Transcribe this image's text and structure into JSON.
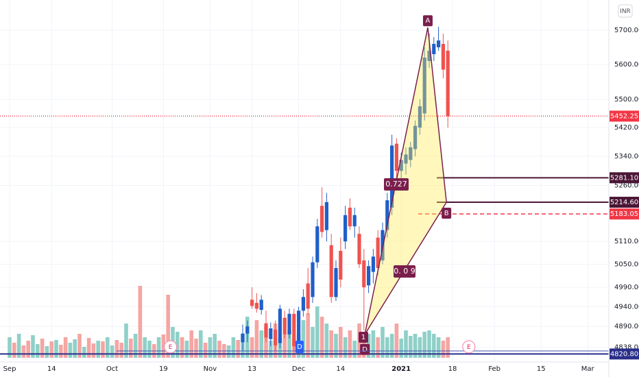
{
  "chart_data": {
    "type": "candlestick",
    "currency": "INR",
    "categories": [
      "Sep",
      null,
      null,
      null,
      null,
      null,
      null,
      null,
      null,
      "14",
      null,
      null,
      null,
      null,
      null,
      null,
      null,
      null,
      null,
      null,
      null,
      null,
      "Oct",
      null,
      null,
      null,
      null,
      null,
      null,
      null,
      null,
      null,
      null,
      "19",
      null,
      null,
      null,
      null,
      null,
      null,
      null,
      null,
      null,
      "Nov",
      null,
      null,
      null,
      null,
      null,
      null,
      null,
      null,
      "13",
      null,
      null,
      null,
      null,
      null,
      null,
      null,
      null,
      null,
      "Dec",
      null,
      null,
      null,
      null,
      null,
      null,
      null,
      null,
      "14",
      null,
      null,
      null,
      null,
      null,
      null,
      null,
      null,
      null,
      null,
      null,
      null,
      "2021",
      null,
      null,
      null,
      null,
      null,
      null,
      null,
      null,
      null,
      null,
      "18",
      null,
      null,
      null,
      null,
      null,
      null,
      null,
      null,
      "Feb",
      null,
      null,
      null,
      null,
      null,
      null,
      null,
      null,
      null,
      "15",
      null,
      null,
      null,
      null,
      null,
      null,
      null,
      null,
      null,
      "Mar",
      null,
      null,
      null
    ],
    "open": [
      null,
      null,
      null,
      null,
      null,
      null,
      null,
      null,
      null,
      null,
      null,
      null,
      null,
      null,
      null,
      null,
      null,
      null,
      null,
      null,
      null,
      null,
      null,
      null,
      null,
      null,
      null,
      null,
      null,
      null,
      null,
      null,
      null,
      null,
      null,
      null,
      null,
      null,
      null,
      null,
      null,
      null,
      null,
      null,
      null,
      null,
      null,
      null,
      null,
      null,
      4850,
      4872,
      4958,
      4950,
      4932,
      4898,
      4858,
      4882,
      4848,
      4912,
      4870,
      4922,
      4840,
      4930,
      5000,
      4965,
      5055,
      5205,
      5140,
      5100,
      4965,
      5085,
      5110,
      5200,
      5150,
      5130,
      5060,
      4995,
      5030,
      5120,
      5060,
      5140,
      5200,
      5375,
      5300,
      5320,
      5330,
      5360,
      5420,
      5460,
      5610,
      5630,
      5650,
      5660,
      5640,
      null,
      null,
      null,
      null,
      null,
      null,
      null,
      null,
      null,
      null,
      null,
      null,
      null,
      null,
      null,
      null,
      null,
      null,
      null,
      null,
      null,
      null,
      null,
      null,
      null,
      null,
      null,
      null,
      null,
      null,
      null,
      null,
      null
    ],
    "high": [
      null,
      null,
      null,
      null,
      null,
      null,
      null,
      null,
      null,
      null,
      null,
      null,
      null,
      null,
      null,
      null,
      null,
      null,
      null,
      null,
      null,
      null,
      null,
      null,
      null,
      null,
      null,
      null,
      null,
      null,
      null,
      null,
      null,
      null,
      null,
      null,
      null,
      null,
      null,
      null,
      null,
      null,
      null,
      null,
      null,
      null,
      null,
      null,
      null,
      null,
      4895,
      4905,
      4990,
      4975,
      4970,
      4930,
      4900,
      4905,
      4945,
      4930,
      4935,
      4935,
      4940,
      4985,
      5040,
      5070,
      5170,
      5255,
      5240,
      5130,
      5060,
      5120,
      5205,
      5225,
      5200,
      5150,
      5090,
      5060,
      5090,
      5140,
      5160,
      5240,
      5400,
      5390,
      5350,
      5365,
      5380,
      5440,
      5500,
      5650,
      5690,
      5680,
      5710,
      5690,
      5670,
      null,
      null,
      null,
      null,
      null,
      null,
      null,
      null,
      null,
      null,
      null,
      null,
      null,
      null,
      null,
      null,
      null,
      null,
      null,
      null,
      null,
      null,
      null,
      null,
      null,
      null,
      null,
      null,
      null,
      null,
      null,
      null,
      null
    ],
    "low": [
      null,
      null,
      null,
      null,
      null,
      null,
      null,
      null,
      null,
      null,
      null,
      null,
      null,
      null,
      null,
      null,
      null,
      null,
      null,
      null,
      null,
      null,
      null,
      null,
      null,
      null,
      null,
      null,
      null,
      null,
      null,
      null,
      null,
      null,
      null,
      null,
      null,
      null,
      null,
      null,
      null,
      null,
      null,
      null,
      null,
      null,
      null,
      null,
      null,
      null,
      4830,
      4850,
      4935,
      4925,
      4920,
      4850,
      4840,
      4830,
      4835,
      4860,
      4860,
      4830,
      4825,
      4915,
      4920,
      4950,
      5040,
      5120,
      5110,
      4950,
      4955,
      4990,
      5090,
      5140,
      5120,
      5040,
      4880,
      4975,
      5000,
      5020,
      5050,
      5120,
      5180,
      5280,
      5270,
      5290,
      5310,
      5340,
      5400,
      5440,
      5590,
      5610,
      5640,
      5560,
      5420,
      null,
      null,
      null,
      null,
      null,
      null,
      null,
      null,
      null,
      null,
      null,
      null,
      null,
      null,
      null,
      null,
      null,
      null,
      null,
      null,
      null,
      null,
      null,
      null,
      null,
      null,
      null,
      null,
      null,
      null,
      null,
      null,
      null
    ],
    "close": [
      null,
      null,
      null,
      null,
      null,
      null,
      null,
      null,
      null,
      null,
      null,
      null,
      null,
      null,
      null,
      null,
      null,
      null,
      null,
      null,
      null,
      null,
      null,
      null,
      null,
      null,
      null,
      null,
      null,
      null,
      null,
      null,
      null,
      null,
      null,
      null,
      null,
      null,
      null,
      null,
      null,
      null,
      null,
      null,
      null,
      null,
      null,
      null,
      null,
      null,
      4872,
      4890,
      4942,
      4935,
      4958,
      4862,
      4885,
      4842,
      4935,
      4870,
      4922,
      4840,
      4930,
      4965,
      4935,
      5055,
      5150,
      5135,
      5215,
      4965,
      5040,
      5010,
      5180,
      5150,
      5180,
      5050,
      4990,
      5045,
      5070,
      5040,
      5140,
      5220,
      5370,
      5300,
      5330,
      5345,
      5365,
      5425,
      5480,
      5620,
      5640,
      5660,
      5670,
      5585,
      5452.25,
      null,
      null,
      null,
      null,
      null,
      null,
      null,
      null,
      null,
      null,
      null,
      null,
      null,
      null,
      null,
      null,
      null,
      null,
      null,
      null,
      null,
      null,
      null,
      null,
      null,
      null,
      null,
      null,
      null,
      null,
      null,
      null,
      null
    ],
    "volume": [
      30,
      22,
      35,
      18,
      25,
      33,
      20,
      28,
      17,
      24,
      26,
      19,
      30,
      22,
      27,
      35,
      16,
      29,
      21,
      25,
      24,
      30,
      18,
      26,
      22,
      50,
      28,
      35,
      105,
      30,
      25,
      20,
      30,
      34,
      92,
      45,
      38,
      30,
      25,
      40,
      28,
      40,
      22,
      30,
      35,
      25,
      20,
      18,
      30,
      26,
      35,
      60,
      30,
      55,
      40,
      45,
      25,
      50,
      30,
      35,
      40,
      28,
      35,
      55,
      65,
      45,
      75,
      60,
      50,
      40,
      35,
      45,
      30,
      40,
      25,
      50,
      30,
      35,
      40,
      30,
      45,
      30,
      35,
      50,
      28,
      40,
      32,
      35,
      30,
      38,
      40,
      35,
      30,
      25,
      30,
      null,
      null,
      null,
      null,
      null,
      null,
      null,
      null,
      null,
      null,
      null,
      null,
      null,
      null,
      null,
      null,
      null,
      null,
      null,
      null,
      null,
      null,
      null,
      null,
      null,
      null,
      null,
      null,
      null,
      null,
      null,
      null,
      null
    ],
    "volume_dirs": "UDUDDUUDUDUDDUUDUDDUDUUDDUDUDUUDUDDUUDUDDUDUUDDUUDUUDDUDUDUDUDUUDUUDUDUDUDUDDUUDUUUDUUUUUUUUUDD",
    "ylim": [
      4801,
      5790
    ],
    "log_scale": true,
    "grid": true,
    "yticks": [
      {
        "value": 5700,
        "label": "5700.00"
      },
      {
        "value": 5600,
        "label": "5600.00"
      },
      {
        "value": 5500,
        "label": "5500.00"
      },
      {
        "value": 5420,
        "label": "5420.00"
      },
      {
        "value": 5340,
        "label": "5340.00"
      },
      {
        "value": 5260,
        "label": "5260.00"
      },
      {
        "value": 5110,
        "label": "5110.00"
      },
      {
        "value": 5050,
        "label": "5050.00"
      },
      {
        "value": 4990,
        "label": "4990.00"
      },
      {
        "value": 4940,
        "label": "4940.00"
      },
      {
        "value": 4890,
        "label": "4890.00"
      },
      {
        "value": 4838,
        "label": "4838.00"
      }
    ],
    "colors": {
      "up": "#1f5fc9",
      "down": "#ef5350",
      "volume_up": "#8fd0c8",
      "volume_down": "#f5a5a3",
      "pattern": "#7a1f4c"
    },
    "price_levels": [
      {
        "value": 5452.25,
        "label": "5452.25",
        "color": "#f23645",
        "style": "dotted"
      },
      {
        "value": 5281.1,
        "label": "5281.10",
        "color": "#4b1636",
        "style": "solid"
      },
      {
        "value": 5214.6,
        "label": "5214.60",
        "color": "#4b1636",
        "style": "solid"
      },
      {
        "value": 5183.05,
        "label": "5183.05",
        "color": "#f23645",
        "style": "dashed"
      },
      {
        "value": 4820.8,
        "label": "4820.80",
        "color": "#2a2e8a",
        "style": "solid"
      }
    ],
    "pattern": {
      "points": [
        {
          "label": "D",
          "at": 76.2,
          "price": 4870
        },
        {
          "label": "A",
          "at": 89.7,
          "price": 5708
        },
        {
          "label": "B",
          "at": 93.7,
          "price": 5214.6
        }
      ],
      "ratios": [
        "0.727",
        "0. 0 9"
      ]
    },
    "events": [
      {
        "label": "E",
        "at": 34.5
      },
      {
        "label": "E",
        "at": 98.5
      }
    ],
    "markers": [
      "1",
      "D"
    ]
  }
}
